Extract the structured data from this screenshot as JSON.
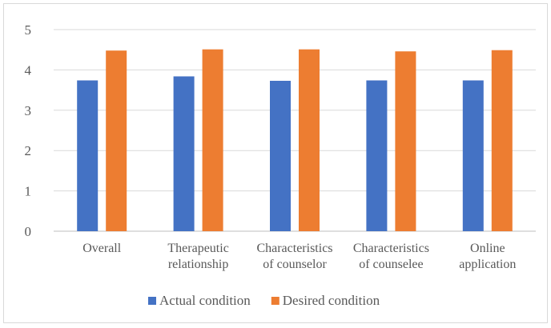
{
  "chart_data": {
    "type": "bar",
    "title": "",
    "xlabel": "",
    "ylabel": "",
    "ylim": [
      0,
      5
    ],
    "yticks": [
      0,
      1,
      2,
      3,
      4,
      5
    ],
    "grid": true,
    "legend_position": "bottom",
    "categories": [
      [
        "Overall"
      ],
      [
        "Therapeutic",
        "relationship"
      ],
      [
        "Characteristics",
        "of counselor"
      ],
      [
        "Characteristics",
        "of counselee"
      ],
      [
        "Online",
        "application"
      ]
    ],
    "series": [
      {
        "name": "Actual condition",
        "color": "#4472C4",
        "values": [
          3.74,
          3.84,
          3.73,
          3.74,
          3.74
        ]
      },
      {
        "name": "Desired condition",
        "color": "#ED7D31",
        "values": [
          4.48,
          4.51,
          4.51,
          4.46,
          4.49
        ]
      }
    ]
  }
}
